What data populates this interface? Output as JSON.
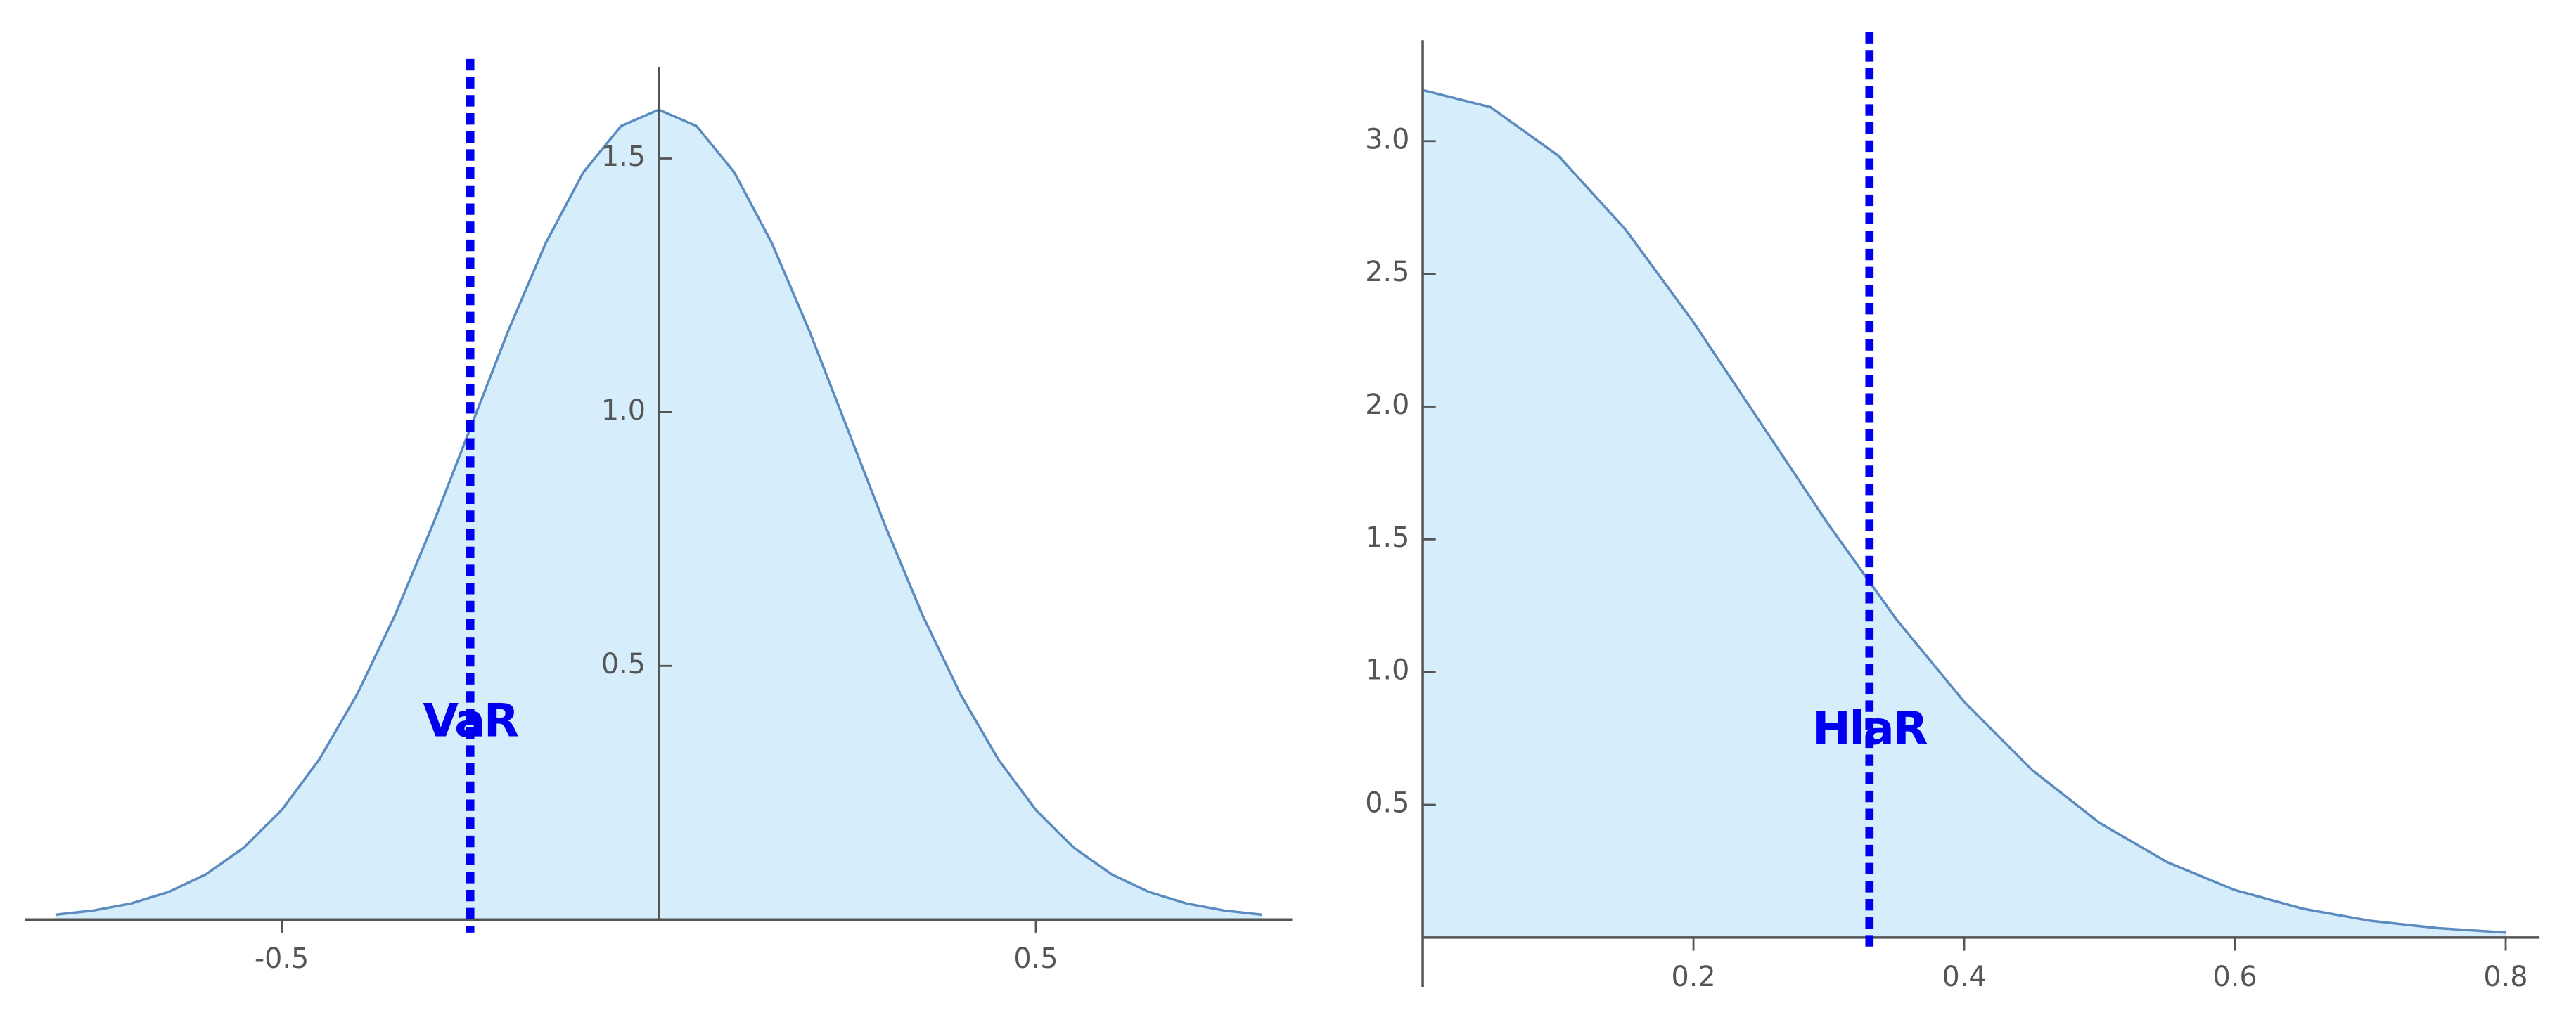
{
  "chart_data": [
    {
      "type": "area",
      "x": [
        -0.8,
        -0.75,
        -0.7,
        -0.65,
        -0.6,
        -0.55,
        -0.5,
        -0.45,
        -0.4,
        -0.35,
        -0.3,
        -0.25,
        -0.2,
        -0.15,
        -0.1,
        -0.05,
        0,
        0.05,
        0.1,
        0.15,
        0.2,
        0.25,
        0.3,
        0.35,
        0.4,
        0.45,
        0.5,
        0.55,
        0.6,
        0.65,
        0.7,
        0.75,
        0.8
      ],
      "values": [
        0.0095,
        0.0177,
        0.0316,
        0.0543,
        0.0896,
        0.142,
        0.216,
        0.316,
        0.444,
        0.599,
        0.777,
        0.968,
        1.159,
        1.333,
        1.473,
        1.564,
        1.596,
        1.564,
        1.473,
        1.333,
        1.159,
        0.968,
        0.777,
        0.599,
        0.444,
        0.316,
        0.216,
        0.142,
        0.0896,
        0.0543,
        0.0316,
        0.0177,
        0.0095
      ],
      "color": "#5b8bbf",
      "fill": "#d6eefb",
      "xlim": [
        -0.84,
        0.84
      ],
      "ylim": [
        0,
        1.68
      ],
      "xticks": [
        -0.5,
        0.5
      ],
      "yticks": [
        0.5,
        {
          "value": 1,
          "label": "1.0"
        },
        1.5
      ],
      "vline": {
        "x": -0.25,
        "label": "VaR",
        "color": "#0000ee"
      }
    },
    {
      "type": "area",
      "x": [
        0,
        0.05,
        0.1,
        0.15,
        0.2,
        0.25,
        0.3,
        0.35,
        0.4,
        0.45,
        0.5,
        0.55,
        0.6,
        0.65,
        0.7,
        0.75,
        0.8
      ],
      "values": [
        3.192,
        3.128,
        2.946,
        2.666,
        2.318,
        1.936,
        1.554,
        1.198,
        0.888,
        0.632,
        0.432,
        0.284,
        0.179,
        0.109,
        0.0632,
        0.0354,
        0.0191
      ],
      "color": "#5b8bbf",
      "fill": "#d6eefb",
      "xlim": [
        0,
        0.825
      ],
      "ylim": [
        0,
        3.38
      ],
      "xticks": [
        0.2,
        0.4,
        0.6,
        0.8
      ],
      "yticks": [
        0.5,
        {
          "value": 1,
          "label": "1.0"
        },
        1.5,
        {
          "value": 2,
          "label": "2.0"
        },
        2.5,
        {
          "value": 3,
          "label": "3.0"
        }
      ],
      "vline": {
        "x": 0.33,
        "label": "HlaR",
        "color": "#0000ee"
      }
    }
  ]
}
